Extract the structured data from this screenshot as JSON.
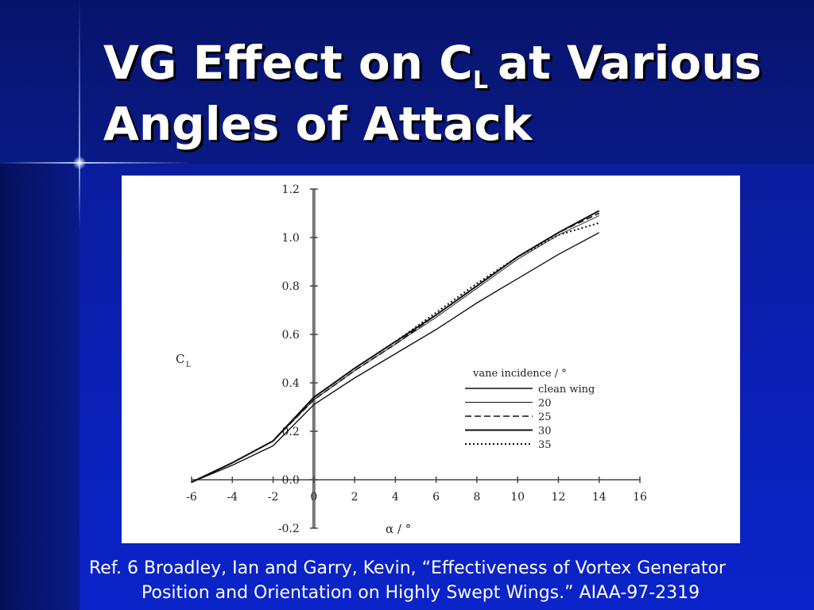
{
  "slide": {
    "title_part1": "VG Effect on C",
    "title_subscript": "L",
    "title_part2": "at Various",
    "title_line2": "Angles of Attack",
    "citation_line1": "Ref. 6 Broadley, Ian and Garry, Kevin, “Effectiveness of Vortex Generator",
    "citation_line2": "Position and Orientation on Highly Swept Wings.”  AIAA-97-2319"
  },
  "chart_data": {
    "type": "line",
    "xlabel": "α / °",
    "ylabel": "C",
    "ylabel_subscript": "L",
    "xlim": [
      -6,
      16
    ],
    "ylim": [
      -0.2,
      1.2
    ],
    "x_ticks": [
      "-6",
      "-4",
      "-2",
      "0",
      "2",
      "4",
      "6",
      "8",
      "10",
      "12",
      "14",
      "16"
    ],
    "y_ticks": [
      "1.2",
      "1.0",
      "0.8",
      "0.6",
      "0.4",
      "0.2",
      "0.0",
      "-0.2"
    ],
    "legend_title": "vane incidence / °",
    "legend_position": "lower-right",
    "grid": false,
    "series": [
      {
        "name": "clean wing",
        "style": "solid",
        "x": [
          -6,
          -4,
          -2,
          0,
          2,
          4,
          6,
          8,
          10,
          12,
          14
        ],
        "y": [
          -0.01,
          0.06,
          0.14,
          0.31,
          0.42,
          0.52,
          0.62,
          0.73,
          0.83,
          0.93,
          1.02
        ]
      },
      {
        "name": "20",
        "style": "thin",
        "x": [
          -6,
          -4,
          -2,
          0,
          2,
          4,
          6,
          8,
          10,
          12,
          14
        ],
        "y": [
          -0.01,
          0.07,
          0.16,
          0.33,
          0.45,
          0.56,
          0.67,
          0.79,
          0.91,
          1.01,
          1.09
        ]
      },
      {
        "name": "25",
        "style": "dashed",
        "x": [
          -6,
          -4,
          -2,
          0,
          2,
          4,
          6,
          8,
          10,
          12,
          14
        ],
        "y": [
          -0.01,
          0.07,
          0.16,
          0.33,
          0.45,
          0.56,
          0.68,
          0.8,
          0.92,
          1.02,
          1.1
        ]
      },
      {
        "name": "30",
        "style": "solid-thick",
        "x": [
          -6,
          -4,
          -2,
          0,
          2,
          4,
          6,
          8,
          10,
          12,
          14
        ],
        "y": [
          -0.01,
          0.07,
          0.16,
          0.34,
          0.46,
          0.57,
          0.68,
          0.8,
          0.92,
          1.02,
          1.11
        ]
      },
      {
        "name": "35",
        "style": "dotted",
        "x": [
          -6,
          -4,
          -2,
          0,
          2,
          4,
          6,
          8,
          10,
          12,
          14
        ],
        "y": [
          -0.01,
          0.07,
          0.16,
          0.34,
          0.46,
          0.57,
          0.69,
          0.81,
          0.92,
          1.01,
          1.06
        ]
      }
    ]
  }
}
